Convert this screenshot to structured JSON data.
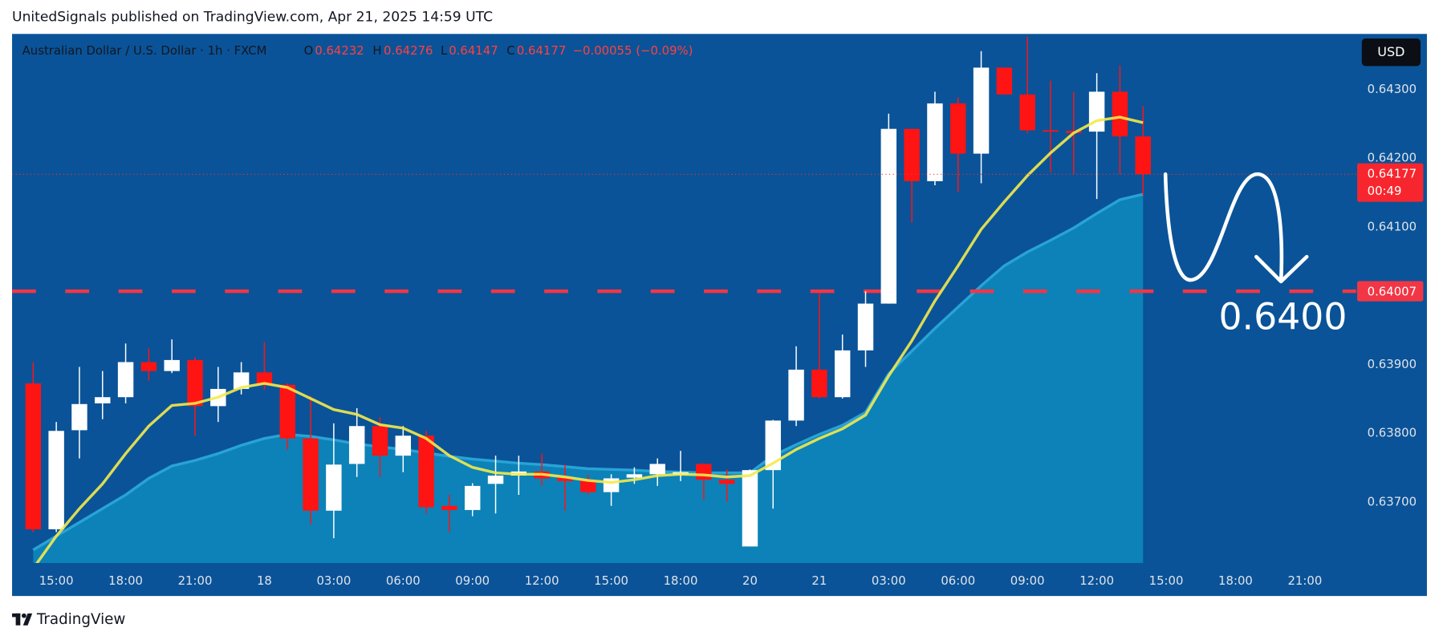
{
  "publisher": "UnitedSignals published on TradingView.com, Apr 21, 2025 14:59 UTC",
  "brand": "TradingView",
  "chart_data": {
    "type": "candlestick",
    "title": "Australian Dollar / U.S. Dollar · 1h · FXCM",
    "legend_labels": [
      "O",
      "H",
      "L",
      "C"
    ],
    "change": "−0.00055 (−0.09%)",
    "currency": "USD",
    "countdown": "00:49",
    "annotation": "0.6400",
    "horizontal_line": 0.64007,
    "horizontal_line_color": "#f23645",
    "up_color": "#ffffff",
    "down_color": "#ff1414",
    "background": "#0a5398",
    "categories": [
      null,
      "15:00",
      null,
      null,
      "18:00",
      null,
      null,
      "21:00",
      null,
      null,
      "18",
      null,
      null,
      "03:00",
      null,
      null,
      "06:00",
      null,
      null,
      "09:00",
      null,
      null,
      "12:00",
      null,
      null,
      "15:00",
      null,
      null,
      "18:00",
      null,
      null,
      "20",
      null,
      null,
      "21",
      null,
      null,
      "03:00",
      null,
      null,
      "06:00",
      null,
      null,
      "09:00",
      null,
      null,
      "12:00",
      null,
      null,
      "15:00",
      null,
      null,
      "18:00",
      null,
      null,
      "21:00"
    ],
    "open": [
      0.63873,
      0.63661,
      0.63805,
      0.63844,
      0.63853,
      0.63904,
      0.63891,
      0.63907,
      0.6384,
      0.63865,
      0.63889,
      0.63871,
      0.63793,
      0.63688,
      0.63756,
      0.63811,
      0.63768,
      0.63797,
      0.63695,
      0.63689,
      0.63727,
      0.63739,
      0.63745,
      0.63736,
      0.63732,
      0.63715,
      0.63736,
      0.63741,
      0.6374,
      0.63756,
      0.63733,
      0.63636,
      0.63747,
      0.63819,
      0.63893,
      0.63853,
      0.63921,
      0.63989,
      0.64243,
      0.64167,
      0.6428,
      0.64207,
      0.64332,
      0.64293,
      0.64241,
      0.6424,
      0.64239,
      0.64297,
      0.64232,
      null,
      null,
      null,
      null,
      null,
      null,
      null
    ],
    "high": [
      0.63904,
      0.63817,
      0.63897,
      0.63891,
      0.63931,
      0.63924,
      0.63937,
      0.63911,
      0.63897,
      0.63904,
      0.63933,
      0.63873,
      0.63855,
      0.63815,
      0.63837,
      0.63824,
      0.63811,
      0.63804,
      0.63711,
      0.63728,
      0.63768,
      0.63768,
      0.63771,
      0.63755,
      0.6374,
      0.63741,
      0.63751,
      0.63764,
      0.63775,
      0.63757,
      0.63748,
      0.63748,
      0.6382,
      0.63927,
      0.64004,
      0.63944,
      0.64007,
      0.64265,
      0.64243,
      0.64297,
      0.64289,
      0.64356,
      0.64332,
      0.64377,
      0.64313,
      0.64297,
      0.64324,
      0.64335,
      0.64276,
      null,
      null,
      null,
      null,
      null,
      null,
      null
    ],
    "low": [
      0.63657,
      0.63657,
      0.63764,
      0.63821,
      0.63844,
      0.63877,
      0.63888,
      0.63797,
      0.63817,
      0.63857,
      0.63864,
      0.63777,
      0.63668,
      0.63648,
      0.63737,
      0.63737,
      0.63744,
      0.63684,
      0.63657,
      0.6368,
      0.63684,
      0.63711,
      0.63724,
      0.63688,
      0.63711,
      0.63695,
      0.63727,
      0.63724,
      0.63731,
      0.63704,
      0.63701,
      0.63636,
      0.63691,
      0.63811,
      0.63851,
      0.63851,
      0.63897,
      0.63989,
      0.64107,
      0.64161,
      0.64151,
      0.64164,
      0.64293,
      0.64237,
      0.6418,
      0.64177,
      0.64141,
      0.64177,
      0.64147,
      null,
      null,
      null,
      null,
      null,
      null,
      null
    ],
    "close": [
      0.63661,
      0.63804,
      0.63843,
      0.63853,
      0.63904,
      0.63891,
      0.63907,
      0.6384,
      0.63865,
      0.63889,
      0.63871,
      0.63793,
      0.63688,
      0.63755,
      0.63811,
      0.63768,
      0.63797,
      0.63693,
      0.63689,
      0.63724,
      0.63739,
      0.63745,
      0.63735,
      0.63731,
      0.63715,
      0.63735,
      0.63741,
      0.63756,
      0.63744,
      0.63733,
      0.63727,
      0.63747,
      0.63819,
      0.63893,
      0.63853,
      0.63921,
      0.63989,
      0.64243,
      0.64167,
      0.6428,
      0.64207,
      0.64332,
      0.64293,
      0.64241,
      0.64239,
      0.64237,
      0.64297,
      0.64232,
      0.64177,
      null,
      null,
      null,
      null,
      null,
      null,
      null
    ],
    "series": [
      {
        "type": "area",
        "color": "#0d8bbd",
        "values": [
          0.63631,
          0.63651,
          0.63671,
          0.63691,
          0.63711,
          0.63735,
          0.63753,
          0.63761,
          0.63771,
          0.63783,
          0.63793,
          0.63799,
          0.63796,
          0.63791,
          0.63785,
          0.63781,
          0.63777,
          0.63772,
          0.63767,
          0.63763,
          0.6376,
          0.63757,
          0.63755,
          0.63752,
          0.63749,
          0.63748,
          0.63747,
          0.63745,
          0.63744,
          0.63743,
          0.63743,
          0.63743,
          0.63768,
          0.63784,
          0.63799,
          0.63812,
          0.63831,
          0.63887,
          0.6392,
          0.63953,
          0.63984,
          0.64015,
          0.64044,
          0.64064,
          0.64081,
          0.64099,
          0.6412,
          0.6414,
          0.64148,
          null,
          null,
          null,
          null,
          null,
          null,
          null
        ]
      },
      {
        "type": "line",
        "color": "#f4ea4c",
        "values": [
          0.63604,
          0.63651,
          0.63691,
          0.63727,
          0.63771,
          0.63811,
          0.63841,
          0.63844,
          0.63853,
          0.63867,
          0.63873,
          0.63867,
          0.63851,
          0.63835,
          0.63828,
          0.63813,
          0.63808,
          0.63793,
          0.63768,
          0.63751,
          0.63743,
          0.63741,
          0.63741,
          0.63737,
          0.63732,
          0.63729,
          0.63733,
          0.63739,
          0.63741,
          0.6374,
          0.63737,
          0.63739,
          0.63757,
          0.63777,
          0.63793,
          0.63807,
          0.63827,
          0.63884,
          0.63935,
          0.63993,
          0.64044,
          0.64097,
          0.64137,
          0.64175,
          0.64208,
          0.64237,
          0.64255,
          0.6426,
          0.64252,
          null,
          null,
          null,
          null,
          null,
          null,
          null
        ]
      }
    ],
    "ylim": [
      0.63612,
      0.64381
    ],
    "yticks": [
      {
        "value": 0.637,
        "label": "0.63700"
      },
      {
        "value": 0.638,
        "label": "0.63800"
      },
      {
        "value": 0.639,
        "label": "0.63900"
      },
      {
        "value": 0.641,
        "label": "0.64100"
      },
      {
        "value": 0.642,
        "label": "0.64200"
      },
      {
        "value": 0.643,
        "label": "0.64300"
      }
    ],
    "grid": false
  }
}
